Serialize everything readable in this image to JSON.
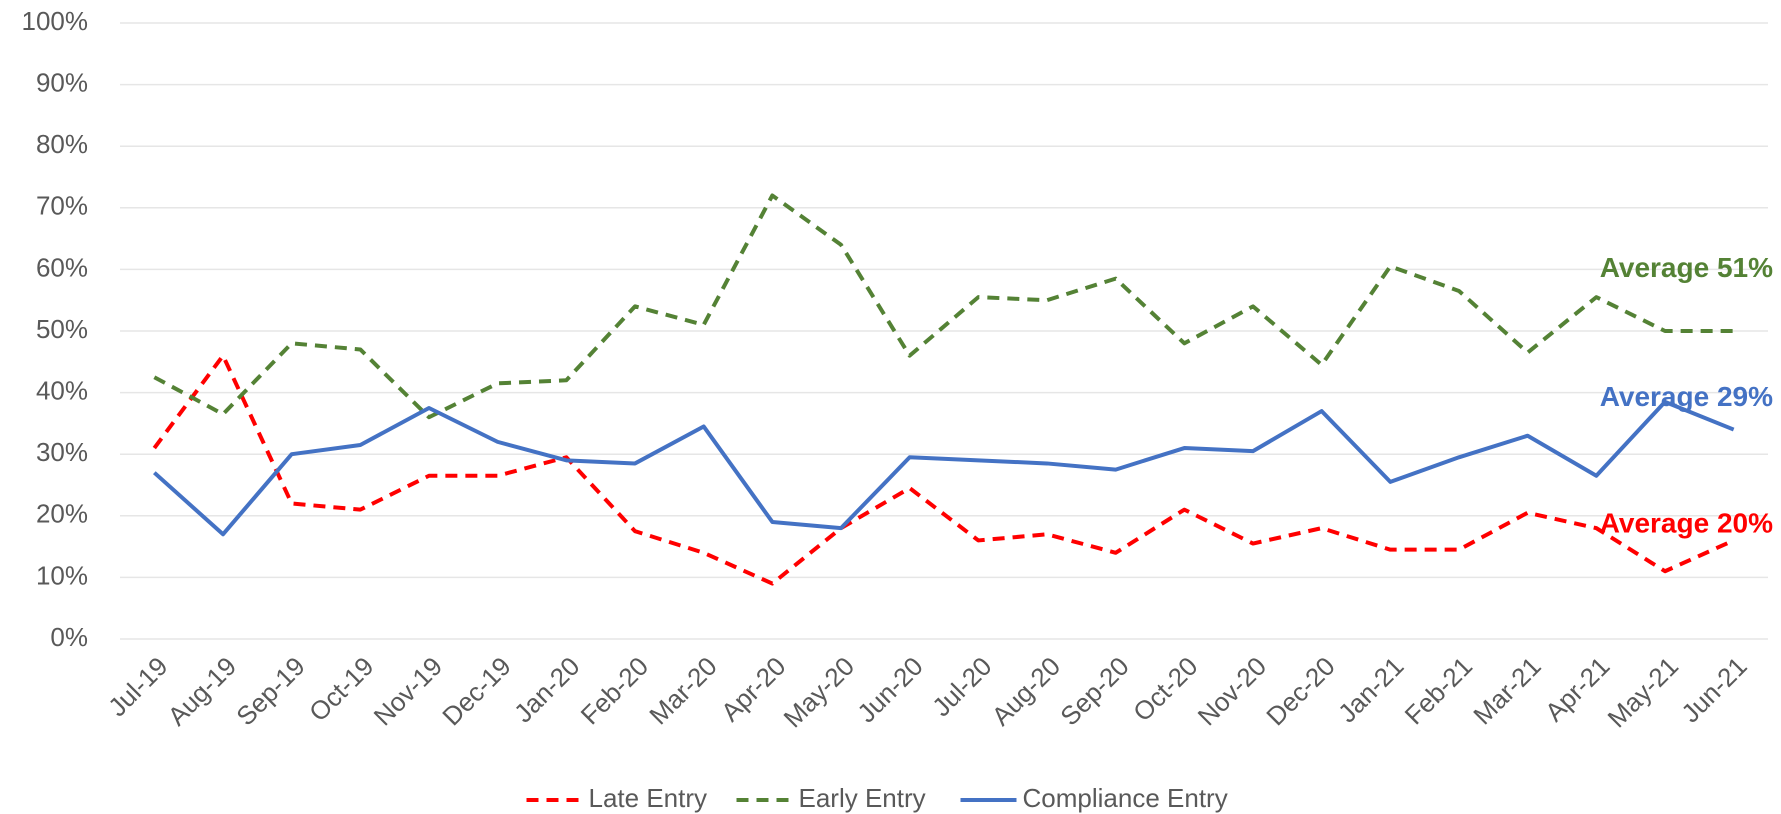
{
  "chart_data": {
    "type": "line",
    "categories": [
      "Jul-19",
      "Aug-19",
      "Sep-19",
      "Oct-19",
      "Nov-19",
      "Dec-19",
      "Jan-20",
      "Feb-20",
      "Mar-20",
      "Apr-20",
      "May-20",
      "Jun-20",
      "Jul-20",
      "Aug-20",
      "Sep-20",
      "Oct-20",
      "Nov-20",
      "Dec-20",
      "Jan-21",
      "Feb-21",
      "Mar-21",
      "Apr-21",
      "May-21",
      "Jun-21"
    ],
    "series": [
      {
        "name": "Late Entry",
        "color": "#ff0000",
        "dash": true,
        "values": [
          31,
          46,
          22,
          21,
          26.5,
          26.5,
          29.5,
          17.5,
          14,
          9,
          18,
          24.5,
          16,
          17,
          14,
          21,
          15.5,
          18,
          14.5,
          14.5,
          20.5,
          18,
          11,
          16
        ]
      },
      {
        "name": "Early Entry",
        "color": "#548235",
        "dash": true,
        "values": [
          42.5,
          36.5,
          48,
          47,
          36,
          41.5,
          42,
          54,
          51,
          72,
          64,
          46,
          55.5,
          55,
          58.5,
          48,
          54,
          44.5,
          60.5,
          56.5,
          46.5,
          55.5,
          50,
          50
        ]
      },
      {
        "name": "Compliance Entry",
        "color": "#4472c4",
        "dash": false,
        "values": [
          27,
          17,
          30,
          31.5,
          37.5,
          32,
          29,
          28.5,
          34.5,
          19,
          18,
          29.5,
          29,
          28.5,
          27.5,
          31,
          30.5,
          37,
          25.5,
          29.5,
          33,
          26.5,
          38.5,
          34
        ]
      }
    ],
    "annotations": [
      {
        "text": "Average 51%",
        "color": "#548235",
        "y": 60
      },
      {
        "text": "Average 29%",
        "color": "#4472c4",
        "y": 39
      },
      {
        "text": "Average 20%",
        "color": "#ff0000",
        "y": 18.5
      }
    ],
    "ylim": [
      0,
      100
    ],
    "yticks": [
      {
        "value": 0,
        "label": "0%"
      },
      {
        "value": 10,
        "label": "10%"
      },
      {
        "value": 20,
        "label": "20%"
      },
      {
        "value": 30,
        "label": "30%"
      },
      {
        "value": 40,
        "label": "40%"
      },
      {
        "value": 50,
        "label": "50%"
      },
      {
        "value": 60,
        "label": "60%"
      },
      {
        "value": 70,
        "label": "70%"
      },
      {
        "value": 80,
        "label": "80%"
      },
      {
        "value": 90,
        "label": "90%"
      },
      {
        "value": 100,
        "label": "100%"
      }
    ],
    "grid": true,
    "legend": "bottom"
  }
}
